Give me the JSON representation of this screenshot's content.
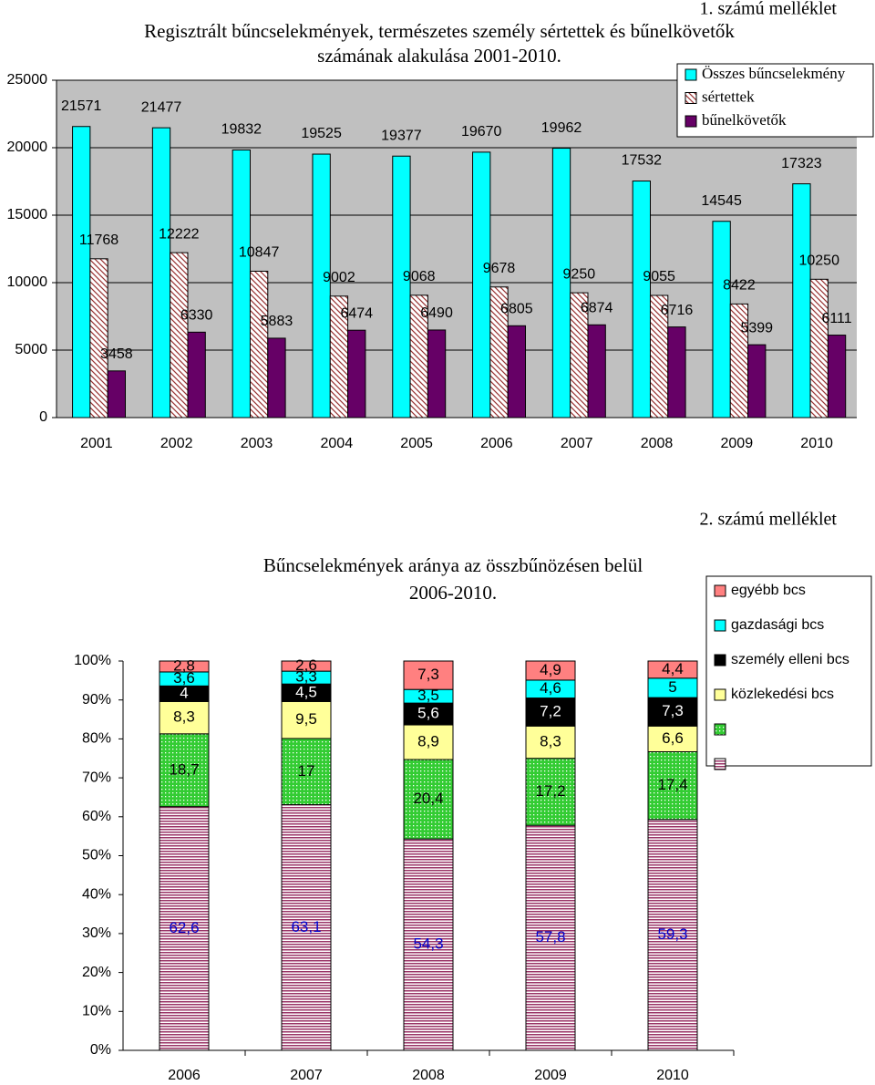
{
  "chart_data": [
    {
      "type": "bar",
      "note": "1. számú melléklet",
      "title": [
        "Regisztrált bűncselekmények, természetes személy sértettek és bűnelkövetők",
        "számának alakulása 2001-2010."
      ],
      "categories": [
        "2001",
        "2002",
        "2003",
        "2004",
        "2005",
        "2006",
        "2007",
        "2008",
        "2009",
        "2010"
      ],
      "series": [
        {
          "name": "Összes bűncselekmény",
          "color": "#00ffff",
          "pattern": "solid",
          "values": [
            21571,
            21477,
            19832,
            19525,
            19377,
            19670,
            19962,
            17532,
            14545,
            17323
          ]
        },
        {
          "name": "sértettek",
          "color": "#993333",
          "pattern": "diagonal",
          "values": [
            11768,
            12222,
            10847,
            9002,
            9068,
            9678,
            9250,
            9055,
            8422,
            10250
          ]
        },
        {
          "name": "bűnelkövetők",
          "color": "#660066",
          "pattern": "solid",
          "values": [
            3458,
            6330,
            5883,
            6474,
            6490,
            6805,
            6874,
            6716,
            5399,
            6111
          ]
        }
      ],
      "ylim": [
        0,
        25000
      ],
      "yticks": [
        0,
        5000,
        10000,
        15000,
        20000,
        25000
      ],
      "grid": true,
      "legend": "upper right"
    },
    {
      "type": "stacked-bar",
      "note": "2. számú melléklet",
      "title": [
        "Bűncselekmények aránya az összbűnözésen belül",
        "2006-2010."
      ],
      "categories": [
        "2006",
        "2007",
        "2008",
        "2009",
        "2010"
      ],
      "series": [
        {
          "color": "#993366",
          "pattern": "hstripes",
          "label_color": "#0000cc",
          "values": [
            62.6,
            63.1,
            54.3,
            57.8,
            59.3
          ],
          "value_labels": [
            "62,6",
            "63,1",
            "54,3",
            "57,8",
            "59,3"
          ]
        },
        {
          "color": "#33cc33",
          "pattern": "dots",
          "label_color": "#000000",
          "values": [
            18.7,
            17,
            20.4,
            17.2,
            17.4
          ],
          "value_labels": [
            "18,7",
            "17",
            "20,4",
            "17,2",
            "17,4"
          ]
        },
        {
          "name": "közlekedési bcs",
          "color": "#ffff99",
          "pattern": "solid",
          "label_color": "#000000",
          "values": [
            8.3,
            9.5,
            8.9,
            8.3,
            6.6
          ],
          "value_labels": [
            "8,3",
            "9,5",
            "8,9",
            "8,3",
            "6,6"
          ]
        },
        {
          "name": "személy elleni bcs",
          "color": "#000000",
          "pattern": "solid",
          "label_color": "#ffffff",
          "values": [
            4,
            4.5,
            5.6,
            7.2,
            7.3
          ],
          "value_labels": [
            "4",
            "4,5",
            "5,6",
            "7,2",
            "7,3"
          ]
        },
        {
          "name": "gazdasági bcs",
          "color": "#00ffff",
          "pattern": "solid",
          "label_color": "#000000",
          "values": [
            3.6,
            3.3,
            3.5,
            4.6,
            5
          ],
          "value_labels": [
            "3,6",
            "3,3",
            "3,5",
            "4,6",
            "5"
          ]
        },
        {
          "name": "egyébb bcs",
          "color": "#ff8080",
          "pattern": "solid",
          "label_color": "#000000",
          "values": [
            2.8,
            2.6,
            7.3,
            4.9,
            4.4
          ],
          "value_labels": [
            "2,8",
            "2,6",
            "7,3",
            "4,9",
            "4,4"
          ]
        }
      ],
      "ylim": [
        0,
        100
      ],
      "yticks": [
        {
          "value": 0,
          "label": "0%"
        },
        {
          "value": 10,
          "label": "10%"
        },
        {
          "value": 20,
          "label": "20%"
        },
        {
          "value": 30,
          "label": "30%"
        },
        {
          "value": 40,
          "label": "40%"
        },
        {
          "value": 50,
          "label": "50%"
        },
        {
          "value": 60,
          "label": "60%"
        },
        {
          "value": 70,
          "label": "70%"
        },
        {
          "value": 80,
          "label": "80%"
        },
        {
          "value": 90,
          "label": "90%"
        },
        {
          "value": 100,
          "label": "100%"
        }
      ],
      "grid": false,
      "legend": "right"
    }
  ]
}
